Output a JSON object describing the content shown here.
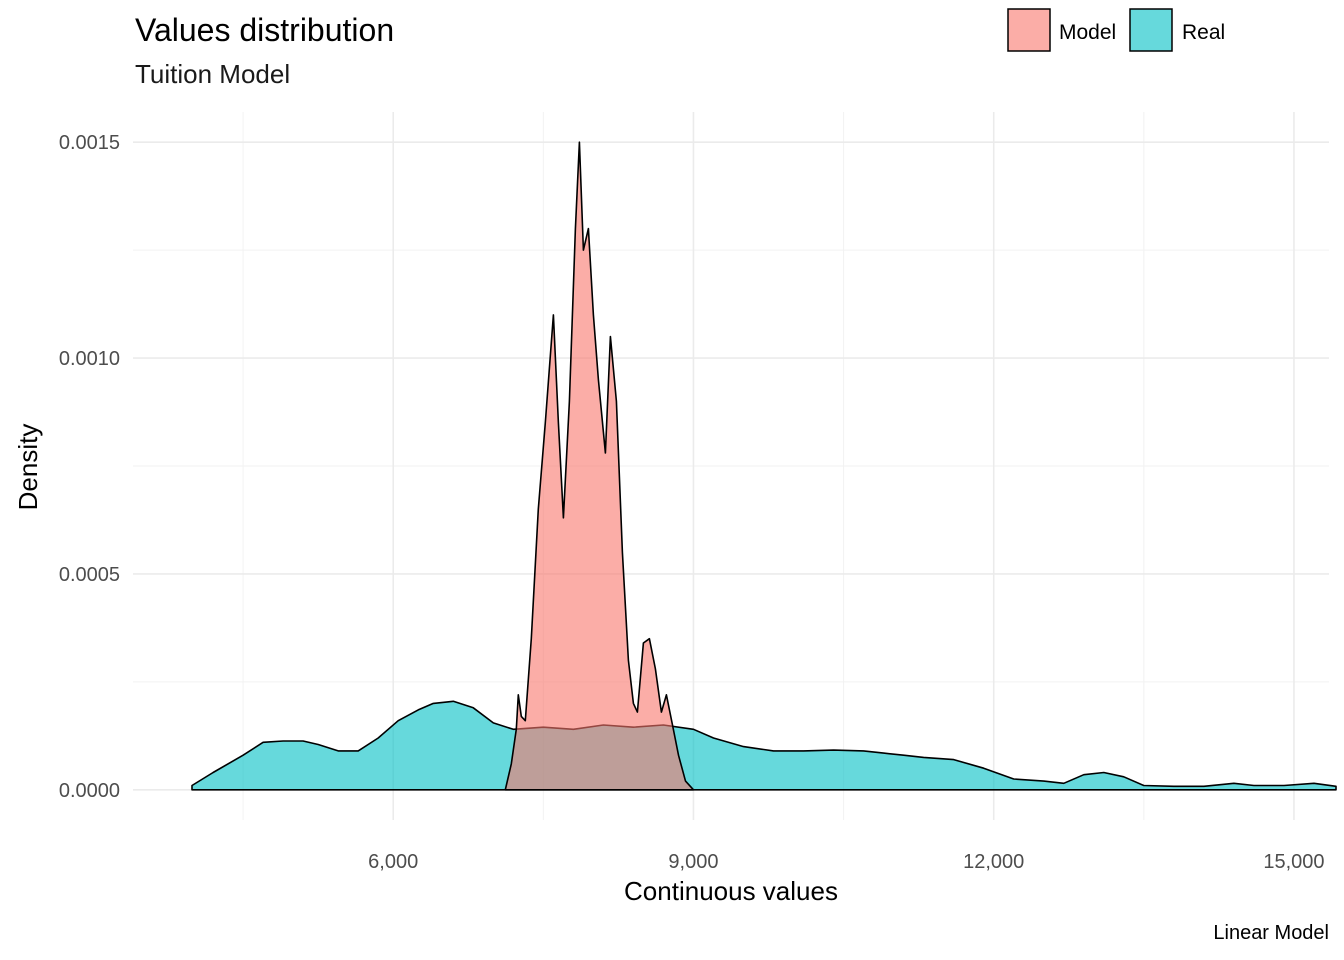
{
  "chart_data": {
    "type": "area",
    "title": "Values distribution",
    "subtitle": "Tuition Model",
    "xlabel": "Continuous values",
    "ylabel": "Density",
    "caption": "Linear Model",
    "xlim": [
      3400,
      15350
    ],
    "ylim": [
      -7e-05,
      0.00157
    ],
    "x_ticks": [
      6000,
      9000,
      12000,
      15000
    ],
    "x_tick_labels": [
      "6,000",
      "9,000",
      "12,000",
      "15,000"
    ],
    "x_minor_ticks": [
      4500,
      7500,
      10500,
      13500
    ],
    "y_ticks": [
      0,
      0.0005,
      0.001,
      0.0015
    ],
    "y_tick_labels": [
      "0.0000",
      "0.0005",
      "0.0010",
      "0.0015"
    ],
    "y_minor_ticks": [
      0.00025,
      0.00075,
      0.00125
    ],
    "grid": true,
    "legend_position": "top-right",
    "series": [
      {
        "name": "Real",
        "color": "#00BFC4",
        "points": [
          [
            3990,
            1e-05
          ],
          [
            4200,
            4e-05
          ],
          [
            4500,
            8e-05
          ],
          [
            4700,
            0.00011
          ],
          [
            4900,
            0.000113
          ],
          [
            5100,
            0.000113
          ],
          [
            5250,
            0.000105
          ],
          [
            5450,
            9e-05
          ],
          [
            5650,
            9e-05
          ],
          [
            5850,
            0.00012
          ],
          [
            6050,
            0.00016
          ],
          [
            6250,
            0.000185
          ],
          [
            6400,
            0.0002
          ],
          [
            6600,
            0.000205
          ],
          [
            6800,
            0.00019
          ],
          [
            7000,
            0.000155
          ],
          [
            7200,
            0.00014
          ],
          [
            7500,
            0.000145
          ],
          [
            7800,
            0.00014
          ],
          [
            8100,
            0.00015
          ],
          [
            8400,
            0.000145
          ],
          [
            8700,
            0.00015
          ],
          [
            9000,
            0.00014
          ],
          [
            9200,
            0.00012
          ],
          [
            9500,
            0.0001
          ],
          [
            9800,
            9e-05
          ],
          [
            10100,
            9e-05
          ],
          [
            10400,
            9.2e-05
          ],
          [
            10700,
            9e-05
          ],
          [
            10900,
            8.5e-05
          ],
          [
            11100,
            8e-05
          ],
          [
            11300,
            7.5e-05
          ],
          [
            11600,
            7e-05
          ],
          [
            11900,
            5e-05
          ],
          [
            12200,
            2.5e-05
          ],
          [
            12500,
            2e-05
          ],
          [
            12700,
            1.5e-05
          ],
          [
            12900,
            3.5e-05
          ],
          [
            13100,
            4e-05
          ],
          [
            13300,
            3e-05
          ],
          [
            13500,
            1e-05
          ],
          [
            13800,
            8e-06
          ],
          [
            14100,
            8e-06
          ],
          [
            14400,
            1.5e-05
          ],
          [
            14600,
            1e-05
          ],
          [
            14900,
            1e-05
          ],
          [
            15200,
            1.5e-05
          ],
          [
            15420,
            8e-06
          ]
        ]
      },
      {
        "name": "Model",
        "color": "#F8766D",
        "points": [
          [
            7120,
            0.0
          ],
          [
            7180,
            6e-05
          ],
          [
            7230,
            0.00014
          ],
          [
            7250,
            0.00022
          ],
          [
            7280,
            0.00017
          ],
          [
            7320,
            0.00016
          ],
          [
            7380,
            0.00035
          ],
          [
            7450,
            0.00065
          ],
          [
            7520,
            0.00085
          ],
          [
            7600,
            0.0011
          ],
          [
            7650,
            0.00085
          ],
          [
            7700,
            0.00063
          ],
          [
            7760,
            0.0009
          ],
          [
            7820,
            0.0013
          ],
          [
            7860,
            0.0015
          ],
          [
            7900,
            0.00125
          ],
          [
            7950,
            0.0013
          ],
          [
            8000,
            0.0011
          ],
          [
            8050,
            0.00095
          ],
          [
            8120,
            0.00078
          ],
          [
            8170,
            0.00105
          ],
          [
            8230,
            0.0009
          ],
          [
            8290,
            0.00055
          ],
          [
            8350,
            0.0003
          ],
          [
            8400,
            0.0002
          ],
          [
            8440,
            0.00018
          ],
          [
            8500,
            0.00034
          ],
          [
            8560,
            0.00035
          ],
          [
            8620,
            0.00028
          ],
          [
            8680,
            0.00018
          ],
          [
            8730,
            0.00022
          ],
          [
            8790,
            0.00015
          ],
          [
            8850,
            8e-05
          ],
          [
            8920,
            2e-05
          ],
          [
            9000,
            0.0
          ]
        ]
      }
    ]
  }
}
